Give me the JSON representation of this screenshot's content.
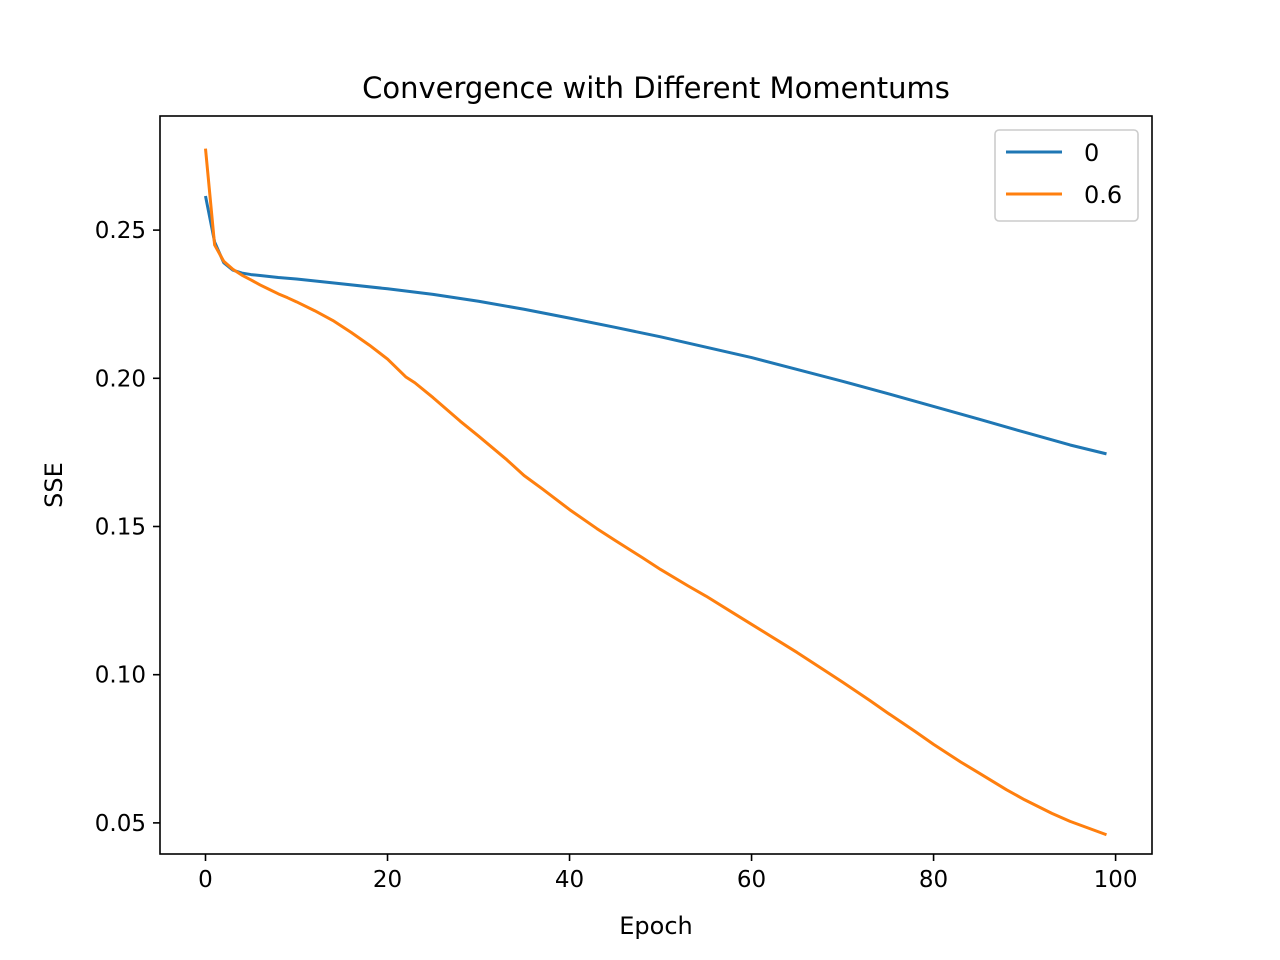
{
  "chart_data": {
    "type": "line",
    "title": "Convergence with Different Momentums",
    "xlabel": "Epoch",
    "ylabel": "SSE",
    "xlim": [
      -5,
      104
    ],
    "ylim": [
      0.0395,
      0.2885
    ],
    "xticks": [
      0,
      20,
      40,
      60,
      80,
      100
    ],
    "xtick_labels": [
      "0",
      "20",
      "40",
      "60",
      "80",
      "100"
    ],
    "yticks": [
      0.05,
      0.1,
      0.15,
      0.2,
      0.25
    ],
    "ytick_labels": [
      "0.05",
      "0.10",
      "0.15",
      "0.20",
      "0.25"
    ],
    "grid": false,
    "legend": "top-right",
    "series": [
      {
        "name": "0",
        "color": "#1f77b4",
        "x": [
          0,
          1,
          2,
          3,
          4,
          5,
          6,
          8,
          10,
          14,
          20,
          25,
          30,
          35,
          40,
          45,
          50,
          55,
          60,
          65,
          70,
          75,
          80,
          85,
          90,
          95,
          99
        ],
        "y": [
          0.2615,
          0.246,
          0.239,
          0.2365,
          0.2355,
          0.235,
          0.2347,
          0.234,
          0.2335,
          0.2322,
          0.2302,
          0.2283,
          0.226,
          0.2233,
          0.2203,
          0.2172,
          0.214,
          0.2105,
          0.207,
          0.203,
          0.199,
          0.1948,
          0.1905,
          0.1862,
          0.1818,
          0.1775,
          0.1745
        ]
      },
      {
        "name": "0.6",
        "color": "#ff7f0e",
        "x": [
          0,
          1,
          2,
          3,
          4,
          5,
          6,
          7,
          8,
          9,
          10,
          12,
          14,
          16,
          18,
          20,
          22,
          23,
          25,
          28,
          30,
          33,
          35,
          37,
          40,
          43,
          45,
          48,
          50,
          53,
          55,
          58,
          60,
          63,
          65,
          68,
          70,
          73,
          75,
          78,
          80,
          83,
          85,
          88,
          90,
          93,
          95,
          99
        ],
        "y": [
          0.2775,
          0.245,
          0.2395,
          0.2368,
          0.2348,
          0.2332,
          0.2315,
          0.23,
          0.2285,
          0.2272,
          0.2258,
          0.2228,
          0.2195,
          0.2155,
          0.2112,
          0.2065,
          0.2005,
          0.1985,
          0.1935,
          0.1855,
          0.1805,
          0.1728,
          0.1672,
          0.1627,
          0.1557,
          0.1493,
          0.1453,
          0.1395,
          0.1355,
          0.13,
          0.1265,
          0.1208,
          0.117,
          0.1113,
          0.1075,
          0.1015,
          0.0975,
          0.0913,
          0.087,
          0.0808,
          0.0765,
          0.0705,
          0.0668,
          0.0612,
          0.0578,
          0.0532,
          0.0505,
          0.046
        ]
      }
    ]
  }
}
